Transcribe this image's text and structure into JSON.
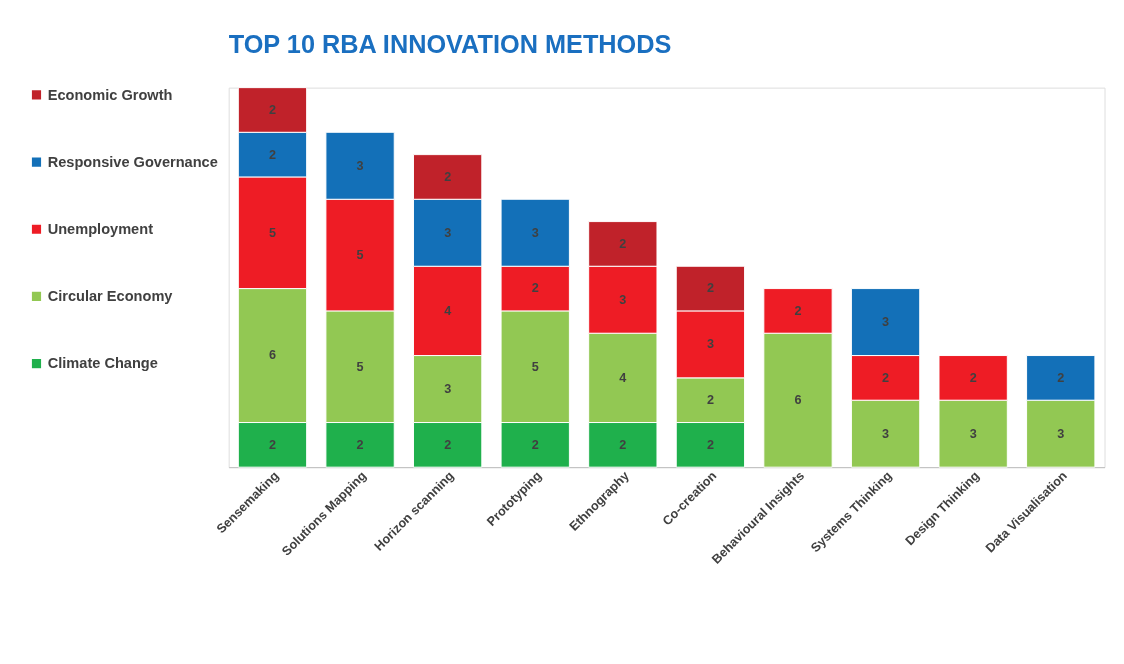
{
  "chart_data": {
    "type": "bar",
    "title": "TOP 10 RBA INNOVATION METHODS",
    "stacked": true,
    "data_labels": true,
    "legend": "left",
    "grid": false,
    "categories": [
      "Sensemaking",
      "Solutions Mapping",
      "Horizon scanning",
      "Prototyping",
      "Ethnography",
      "Co-creation",
      "Behavioural Insights",
      "Systems Thinking",
      "Design Thinking",
      "Data Visualisation"
    ],
    "series": [
      {
        "name": "Climate Change",
        "color": "#1fb04c",
        "values": [
          2,
          2,
          2,
          2,
          2,
          2,
          null,
          null,
          null,
          null
        ]
      },
      {
        "name": "Circular Economy",
        "color": "#92c853",
        "values": [
          6,
          5,
          3,
          5,
          4,
          2,
          6,
          3,
          3,
          3
        ]
      },
      {
        "name": "Unemployment",
        "color": "#ee1c25",
        "values": [
          5,
          5,
          4,
          2,
          3,
          3,
          2,
          2,
          2,
          null
        ]
      },
      {
        "name": "Responsive Governance",
        "color": "#1370b8",
        "values": [
          2,
          3,
          3,
          3,
          null,
          null,
          null,
          3,
          null,
          2
        ]
      },
      {
        "name": "Economic Growth",
        "color": "#c0222a",
        "values": [
          2,
          null,
          2,
          null,
          2,
          2,
          null,
          null,
          null,
          null
        ]
      }
    ]
  }
}
